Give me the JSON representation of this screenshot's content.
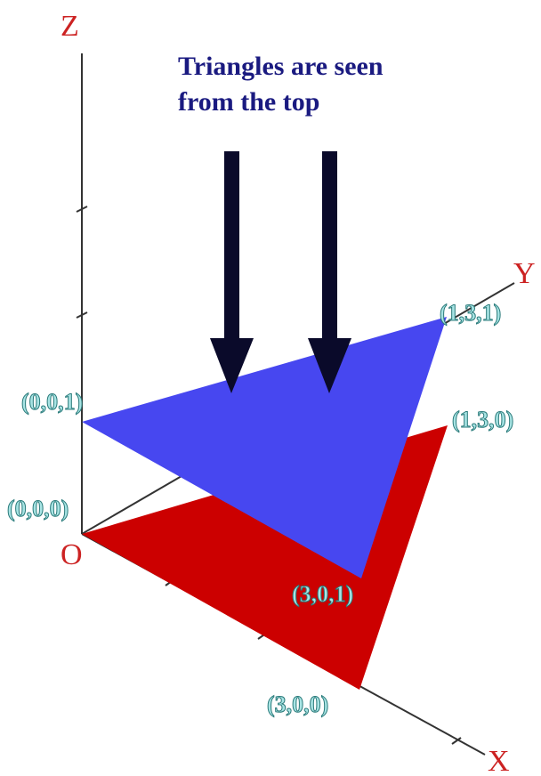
{
  "caption": {
    "line1": "Triangles are seen",
    "line2": "from the top",
    "color": "#1a1a80"
  },
  "axes": {
    "x_label": "X",
    "y_label": "Y",
    "z_label": "Z",
    "origin_label": "O",
    "label_color": "#cc2222"
  },
  "points": {
    "p001": "(0,0,1)",
    "p000": "(0,0,0)",
    "p131": "(1,3,1)",
    "p130": "(1,3,0)",
    "p301": "(3,0,1)",
    "p300": "(3,0,0)",
    "label_fill": "#a8e4e4",
    "label_stroke": "#2a7a7a"
  },
  "colors": {
    "upper_triangle": "#4747f0",
    "lower_triangle": "#cc0000",
    "arrow": "#0a0a2a",
    "axis_line": "#333333"
  }
}
